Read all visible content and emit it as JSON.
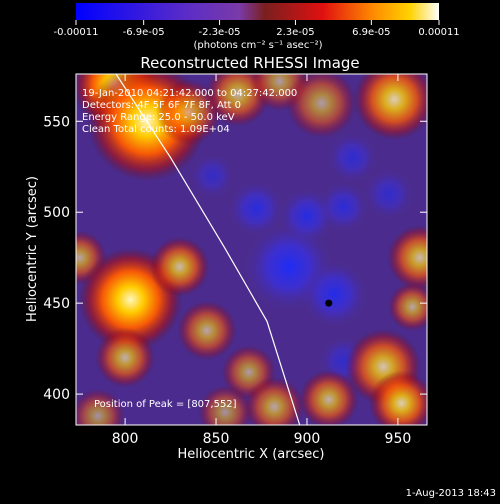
{
  "colorbar": {
    "tick_labels": [
      "-0.00011",
      "-6.9e-05",
      "-2.3e-05",
      "2.3e-05",
      "6.9e-05",
      "0.00011"
    ],
    "tick_values": [
      -0.00011,
      -6.9e-05,
      -2.3e-05,
      2.3e-05,
      6.9e-05,
      0.00011
    ],
    "unit_label": "(photons cm⁻² s⁻¹ asec⁻²)"
  },
  "chart_data": {
    "type": "heatmap",
    "title": "Reconstructed RHESSI Image",
    "xlabel": "Heliocentric X (arcsec)",
    "ylabel": "Heliocentric Y (arcsec)",
    "xlim": [
      773,
      966
    ],
    "ylim": [
      383,
      576
    ],
    "xticks": [
      800,
      850,
      900,
      950
    ],
    "yticks": [
      400,
      450,
      500,
      550
    ],
    "info_lines": [
      "19-Jan-2010 04:21:42.000 to 04:27:42.000",
      "Detectors: 4F 5F 6F 7F 8F, Att 0",
      "Energy Range: 25.0 - 50.0 keV",
      "Clean   Total counts: 1.09E+04"
    ],
    "peak_label": "Position of Peak = [807,552]",
    "peak": [
      807,
      552
    ],
    "limb_line": [
      [
        795,
        576
      ],
      [
        825,
        530
      ],
      [
        855,
        480
      ],
      [
        878,
        440
      ],
      [
        896,
        383
      ]
    ],
    "blobs": [
      {
        "x": 795,
        "y": 570,
        "r": 16,
        "a": 1.0
      },
      {
        "x": 812,
        "y": 550,
        "r": 22,
        "a": 1.0
      },
      {
        "x": 835,
        "y": 555,
        "r": 12,
        "a": 0.6
      },
      {
        "x": 862,
        "y": 565,
        "r": 12,
        "a": 0.65
      },
      {
        "x": 885,
        "y": 572,
        "r": 11,
        "a": 0.55
      },
      {
        "x": 908,
        "y": 560,
        "r": 13,
        "a": 0.55
      },
      {
        "x": 948,
        "y": 562,
        "r": 15,
        "a": 0.8
      },
      {
        "x": 775,
        "y": 475,
        "r": 10,
        "a": 0.6
      },
      {
        "x": 803,
        "y": 452,
        "r": 19,
        "a": 1.0
      },
      {
        "x": 830,
        "y": 470,
        "r": 11,
        "a": 0.7
      },
      {
        "x": 800,
        "y": 420,
        "r": 11,
        "a": 0.65
      },
      {
        "x": 845,
        "y": 435,
        "r": 11,
        "a": 0.6
      },
      {
        "x": 868,
        "y": 412,
        "r": 10,
        "a": 0.55
      },
      {
        "x": 962,
        "y": 475,
        "r": 12,
        "a": 0.7
      },
      {
        "x": 958,
        "y": 448,
        "r": 9,
        "a": 0.6
      },
      {
        "x": 942,
        "y": 415,
        "r": 14,
        "a": 0.75
      },
      {
        "x": 952,
        "y": 395,
        "r": 12,
        "a": 0.8
      },
      {
        "x": 912,
        "y": 397,
        "r": 11,
        "a": 0.65
      },
      {
        "x": 882,
        "y": 393,
        "r": 11,
        "a": 0.6
      },
      {
        "x": 855,
        "y": 390,
        "r": 10,
        "a": 0.5
      },
      {
        "x": 785,
        "y": 388,
        "r": 10,
        "a": 0.5
      }
    ],
    "negative_blobs": [
      {
        "x": 890,
        "y": 470,
        "r": 16,
        "a": 0.9
      },
      {
        "x": 915,
        "y": 455,
        "r": 12,
        "a": 0.8
      },
      {
        "x": 872,
        "y": 502,
        "r": 10,
        "a": 0.7
      },
      {
        "x": 900,
        "y": 498,
        "r": 10,
        "a": 0.75
      },
      {
        "x": 920,
        "y": 503,
        "r": 9,
        "a": 0.65
      },
      {
        "x": 925,
        "y": 530,
        "r": 9,
        "a": 0.6
      },
      {
        "x": 945,
        "y": 510,
        "r": 9,
        "a": 0.55
      },
      {
        "x": 920,
        "y": 418,
        "r": 9,
        "a": 0.55
      },
      {
        "x": 848,
        "y": 520,
        "r": 8,
        "a": 0.5
      }
    ]
  },
  "footer": {
    "timestamp": "1-Aug-2013 18:43"
  }
}
